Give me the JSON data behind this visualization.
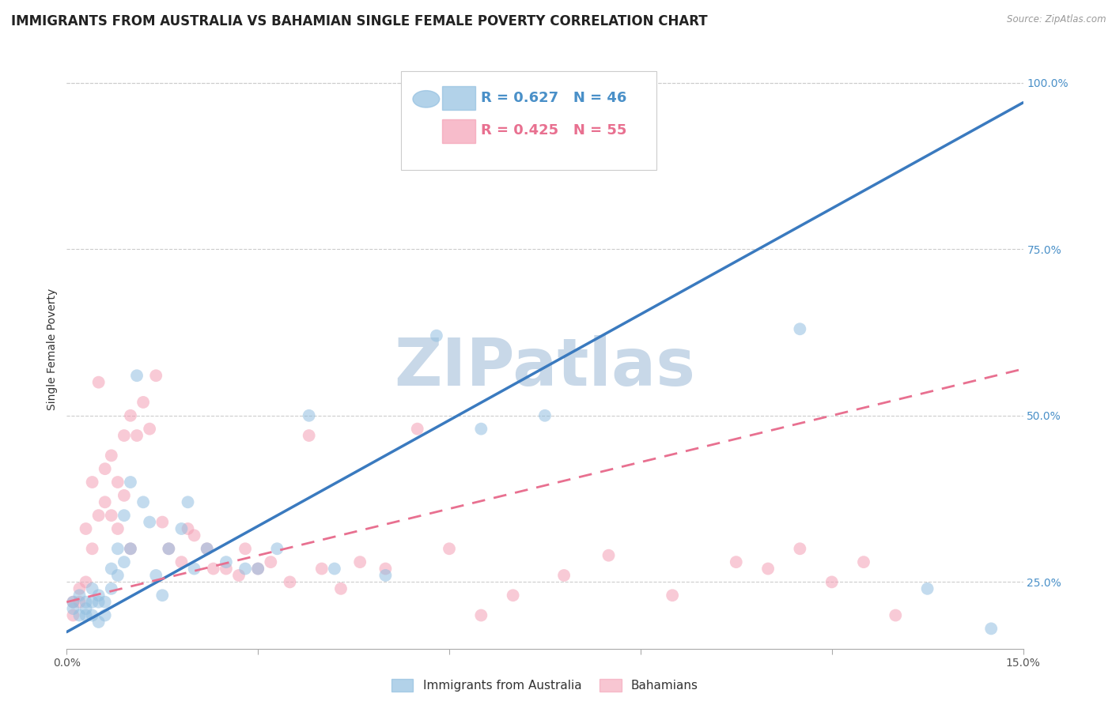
{
  "title": "IMMIGRANTS FROM AUSTRALIA VS BAHAMIAN SINGLE FEMALE POVERTY CORRELATION CHART",
  "source": "Source: ZipAtlas.com",
  "ylabel": "Single Female Poverty",
  "xlim": [
    0.0,
    0.15
  ],
  "ylim": [
    0.15,
    1.05
  ],
  "legend_bottom": [
    "Immigrants from Australia",
    "Bahamians"
  ],
  "watermark": "ZIPatlas",
  "blue_color": "#92bfe0",
  "pink_color": "#f4a0b5",
  "blue_line_color": "#3a7abf",
  "pink_line_color": "#e87090",
  "grid_color": "#cccccc",
  "background_color": "#ffffff",
  "title_fontsize": 12,
  "axis_label_fontsize": 10,
  "tick_fontsize": 10,
  "legend_fontsize": 13,
  "watermark_color": "#c8d8e8",
  "watermark_fontsize": 60,
  "blue_line_x0": 0.0,
  "blue_line_y0": 0.175,
  "blue_line_x1": 0.15,
  "blue_line_y1": 0.97,
  "pink_line_x0": 0.0,
  "pink_line_y0": 0.22,
  "pink_line_x1": 0.15,
  "pink_line_y1": 0.57,
  "blue_scatter_x": [
    0.001,
    0.001,
    0.002,
    0.002,
    0.003,
    0.003,
    0.003,
    0.004,
    0.004,
    0.004,
    0.005,
    0.005,
    0.005,
    0.006,
    0.006,
    0.007,
    0.007,
    0.008,
    0.008,
    0.009,
    0.009,
    0.01,
    0.01,
    0.011,
    0.012,
    0.013,
    0.014,
    0.015,
    0.016,
    0.018,
    0.019,
    0.02,
    0.022,
    0.025,
    0.028,
    0.03,
    0.033,
    0.038,
    0.042,
    0.05,
    0.058,
    0.065,
    0.075,
    0.115,
    0.135,
    0.145
  ],
  "blue_scatter_y": [
    0.21,
    0.22,
    0.2,
    0.23,
    0.21,
    0.22,
    0.2,
    0.24,
    0.22,
    0.2,
    0.23,
    0.22,
    0.19,
    0.22,
    0.2,
    0.24,
    0.27,
    0.26,
    0.3,
    0.28,
    0.35,
    0.3,
    0.4,
    0.56,
    0.37,
    0.34,
    0.26,
    0.23,
    0.3,
    0.33,
    0.37,
    0.27,
    0.3,
    0.28,
    0.27,
    0.27,
    0.3,
    0.5,
    0.27,
    0.26,
    0.62,
    0.48,
    0.5,
    0.63,
    0.24,
    0.18
  ],
  "pink_scatter_x": [
    0.001,
    0.001,
    0.002,
    0.002,
    0.003,
    0.003,
    0.004,
    0.004,
    0.005,
    0.005,
    0.006,
    0.006,
    0.007,
    0.007,
    0.008,
    0.008,
    0.009,
    0.009,
    0.01,
    0.01,
    0.011,
    0.012,
    0.013,
    0.014,
    0.015,
    0.016,
    0.018,
    0.019,
    0.02,
    0.022,
    0.023,
    0.025,
    0.027,
    0.028,
    0.03,
    0.032,
    0.035,
    0.038,
    0.04,
    0.043,
    0.046,
    0.05,
    0.055,
    0.06,
    0.065,
    0.07,
    0.078,
    0.085,
    0.095,
    0.105,
    0.11,
    0.115,
    0.12,
    0.125,
    0.13
  ],
  "pink_scatter_y": [
    0.22,
    0.2,
    0.24,
    0.22,
    0.33,
    0.25,
    0.4,
    0.3,
    0.55,
    0.35,
    0.42,
    0.37,
    0.44,
    0.35,
    0.33,
    0.4,
    0.47,
    0.38,
    0.5,
    0.3,
    0.47,
    0.52,
    0.48,
    0.56,
    0.34,
    0.3,
    0.28,
    0.33,
    0.32,
    0.3,
    0.27,
    0.27,
    0.26,
    0.3,
    0.27,
    0.28,
    0.25,
    0.47,
    0.27,
    0.24,
    0.28,
    0.27,
    0.48,
    0.3,
    0.2,
    0.23,
    0.26,
    0.29,
    0.23,
    0.28,
    0.27,
    0.3,
    0.25,
    0.28,
    0.2
  ]
}
